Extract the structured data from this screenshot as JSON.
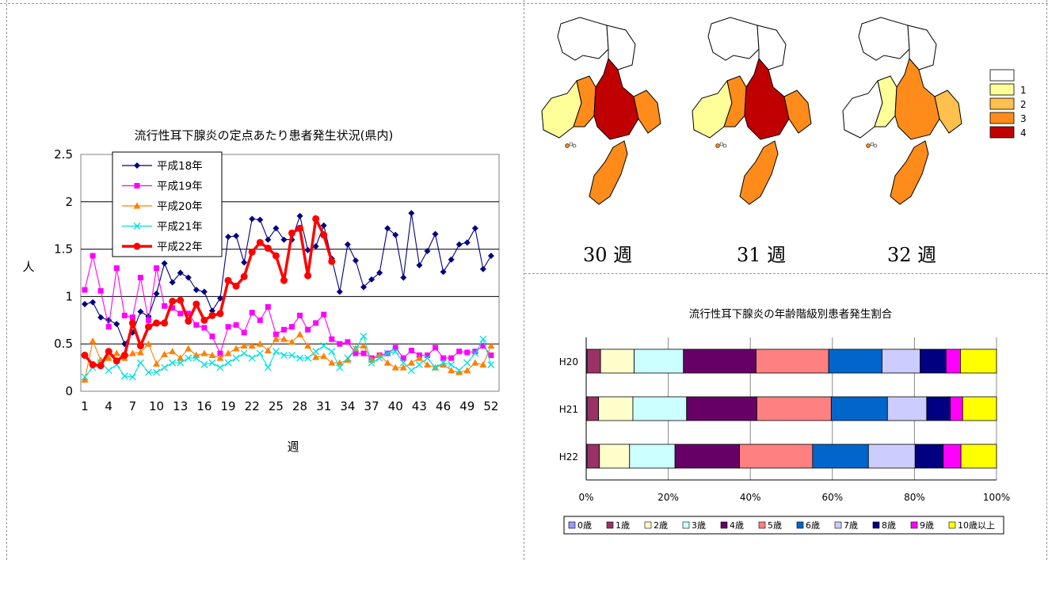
{
  "line_chart": {
    "title": "流行性耳下腺炎の定点あたり患者発生状況(県内)",
    "ylabel": "人",
    "xlabel": "週"
  },
  "bar_chart": {
    "title": "流行性耳下腺炎の年齢階級別患者発生割合"
  },
  "maps": {
    "week_labels": [
      "30 週",
      "31 週",
      "32 週"
    ],
    "legend_levels": [
      "",
      "1",
      "2",
      "3",
      "4"
    ],
    "legend_colors": [
      "#ffffff",
      "#ffff99",
      "#ffc04d",
      "#ff8c1a",
      "#c00000"
    ]
  },
  "chart_data": [
    {
      "type": "line",
      "title": "流行性耳下腺炎の定点あたり患者発生状況(県内)",
      "xlabel": "週",
      "ylabel": "人",
      "xlim": [
        1,
        53
      ],
      "ylim": [
        0,
        2.5
      ],
      "yticks": [
        0,
        0.5,
        1,
        1.5,
        2,
        2.5
      ],
      "xticks": [
        1,
        4,
        7,
        10,
        13,
        16,
        19,
        22,
        25,
        28,
        31,
        34,
        37,
        40,
        43,
        46,
        49,
        52
      ],
      "grid": "horizontal",
      "legend_position": "top-left",
      "series": [
        {
          "name": "平成18年",
          "color": "#000080",
          "marker": "diamond",
          "values": [
            0.92,
            0.94,
            0.78,
            0.75,
            0.71,
            0.5,
            0.62,
            0.84,
            0.79,
            1.03,
            1.35,
            1.15,
            1.25,
            1.2,
            1.07,
            1.05,
            0.85,
            0.98,
            1.63,
            1.64,
            1.36,
            1.82,
            1.81,
            1.6,
            1.72,
            1.6,
            1.6,
            1.85,
            1.49,
            1.53,
            1.75,
            1.4,
            1.05,
            1.55,
            1.38,
            1.1,
            1.18,
            1.25,
            1.72,
            1.65,
            1.2,
            1.88,
            1.33,
            1.48,
            1.66,
            1.26,
            1.39,
            1.55,
            1.57,
            1.72,
            1.29,
            1.43
          ]
        },
        {
          "name": "平成19年",
          "color": "#ff00ff",
          "marker": "square",
          "values": [
            1.07,
            1.43,
            1.06,
            0.68,
            1.3,
            0.8,
            0.78,
            1.2,
            0.75,
            1.3,
            0.9,
            0.88,
            0.82,
            0.82,
            0.7,
            0.67,
            0.58,
            0.4,
            0.68,
            0.7,
            0.62,
            0.83,
            0.75,
            0.89,
            0.6,
            0.65,
            0.68,
            0.8,
            0.65,
            0.72,
            0.81,
            0.55,
            0.5,
            0.52,
            0.4,
            0.4,
            0.35,
            0.38,
            0.4,
            0.46,
            0.35,
            0.43,
            0.38,
            0.38,
            0.46,
            0.35,
            0.35,
            0.42,
            0.41,
            0.42,
            0.48,
            0.38
          ]
        },
        {
          "name": "平成20年",
          "color": "#ff8000",
          "marker": "triangle",
          "values": [
            0.12,
            0.53,
            0.33,
            0.35,
            0.4,
            0.35,
            0.4,
            0.41,
            0.5,
            0.29,
            0.39,
            0.42,
            0.35,
            0.45,
            0.38,
            0.4,
            0.38,
            0.35,
            0.4,
            0.45,
            0.48,
            0.48,
            0.5,
            0.43,
            0.55,
            0.55,
            0.52,
            0.6,
            0.48,
            0.36,
            0.37,
            0.3,
            0.3,
            0.33,
            0.45,
            0.48,
            0.33,
            0.38,
            0.3,
            0.25,
            0.25,
            0.3,
            0.35,
            0.28,
            0.25,
            0.28,
            0.22,
            0.2,
            0.22,
            0.3,
            0.28,
            0.48
          ]
        },
        {
          "name": "平成21年",
          "color": "#00e0e0",
          "marker": "x",
          "values": [
            0.15,
            0.25,
            0.3,
            0.22,
            0.28,
            0.16,
            0.15,
            0.3,
            0.2,
            0.2,
            0.25,
            0.3,
            0.3,
            0.35,
            0.35,
            0.28,
            0.3,
            0.25,
            0.3,
            0.35,
            0.4,
            0.35,
            0.4,
            0.25,
            0.42,
            0.38,
            0.38,
            0.35,
            0.35,
            0.42,
            0.48,
            0.42,
            0.25,
            0.35,
            0.45,
            0.58,
            0.3,
            0.35,
            0.4,
            0.42,
            0.3,
            0.22,
            0.28,
            0.35,
            0.25,
            0.3,
            0.28,
            0.22,
            0.3,
            0.4,
            0.55,
            0.28
          ]
        },
        {
          "name": "平成22年",
          "color": "#ff0000",
          "marker": "circle",
          "bold": true,
          "values": [
            0.38,
            0.28,
            0.27,
            0.42,
            0.32,
            0.38,
            0.72,
            0.48,
            0.68,
            0.72,
            0.72,
            0.95,
            0.96,
            0.74,
            0.92,
            0.75,
            0.8,
            0.82,
            1.17,
            1.11,
            1.21,
            1.47,
            1.57,
            1.51,
            1.43,
            1.17,
            1.67,
            1.72,
            1.22,
            1.82,
            1.65,
            1.37
          ]
        }
      ]
    },
    {
      "type": "bar",
      "stacked": "percent",
      "orientation": "horizontal",
      "title": "流行性耳下腺炎の年齢階級別患者発生割合",
      "categories": [
        "H20",
        "H21",
        "H22"
      ],
      "xticks": [
        "0%",
        "20%",
        "40%",
        "60%",
        "80%",
        "100%"
      ],
      "xlim": [
        0,
        100
      ],
      "legend_position": "bottom",
      "series": [
        {
          "name": "0歳",
          "color": "#9999ff",
          "values": [
            0.2,
            0.2,
            0.2
          ]
        },
        {
          "name": "1歳",
          "color": "#993366",
          "values": [
            3.3,
            2.8,
            3.0
          ]
        },
        {
          "name": "2歳",
          "color": "#ffffcc",
          "values": [
            8.2,
            8.3,
            7.3
          ]
        },
        {
          "name": "3歳",
          "color": "#ccffff",
          "values": [
            12.0,
            13.0,
            11.0
          ]
        },
        {
          "name": "4歳",
          "color": "#660066",
          "values": [
            17.7,
            17.0,
            15.6
          ]
        },
        {
          "name": "5歳",
          "color": "#ff8080",
          "values": [
            17.7,
            18.0,
            17.7
          ]
        },
        {
          "name": "6歳",
          "color": "#0066cc",
          "values": [
            13.0,
            13.6,
            13.5
          ]
        },
        {
          "name": "7歳",
          "color": "#ccccff",
          "values": [
            9.3,
            9.5,
            11.3
          ]
        },
        {
          "name": "8歳",
          "color": "#000080",
          "values": [
            6.3,
            5.7,
            6.8
          ]
        },
        {
          "name": "9歳",
          "color": "#ff00ff",
          "values": [
            3.5,
            3.0,
            4.3
          ]
        },
        {
          "name": "10歳以上",
          "color": "#ffff00",
          "values": [
            8.8,
            8.2,
            8.6
          ]
        }
      ]
    }
  ]
}
